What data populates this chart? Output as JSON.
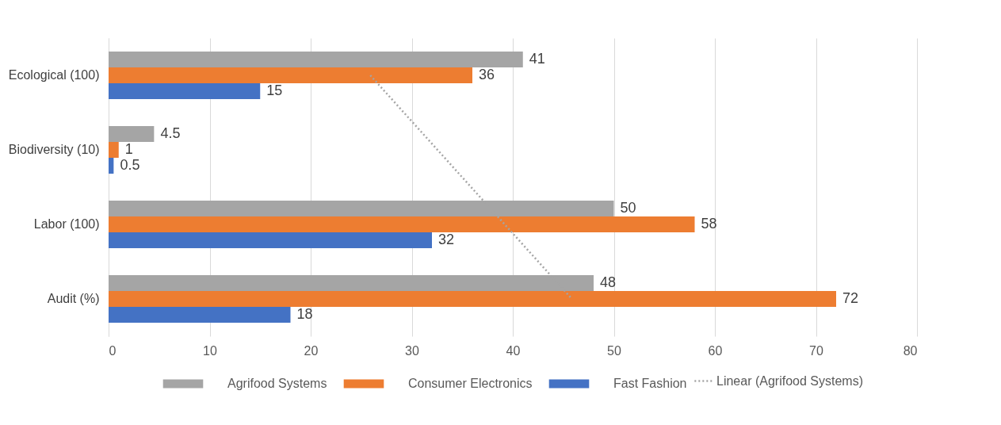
{
  "chart_data": {
    "type": "bar",
    "orientation": "horizontal",
    "categories": [
      "Ecological (100)",
      "Biodiversity (10)",
      "Labor (100)",
      "Audit (%)"
    ],
    "series": [
      {
        "name": "Agrifood Systems",
        "color": "#a5a5a5",
        "values": [
          41,
          4.5,
          50,
          48
        ],
        "value_labels": [
          "41",
          "4.5",
          "50",
          "48"
        ]
      },
      {
        "name": "Consumer Electronics",
        "color": "#ed7d31",
        "values": [
          36,
          1,
          58,
          72
        ],
        "value_labels": [
          "36",
          "1",
          "58",
          "72"
        ]
      },
      {
        "name": "Fast Fashion",
        "color": "#4472c4",
        "values": [
          15,
          0.5,
          32,
          18
        ],
        "value_labels": [
          "15",
          "0.5",
          "32",
          "18"
        ]
      },
      {
        "name": "Linear (Agrifood Systems)",
        "type": "line",
        "line_style": "dotted",
        "color": "#a5a5a5",
        "x": [
          "Ecological (100)",
          "Audit (%)"
        ],
        "values": [
          25.9,
          45.85
        ]
      }
    ],
    "xlim": [
      0,
      80
    ],
    "xticks": [
      0,
      10,
      20,
      30,
      40,
      50,
      60,
      70,
      80
    ],
    "grid": "x",
    "legend": "bottom"
  }
}
